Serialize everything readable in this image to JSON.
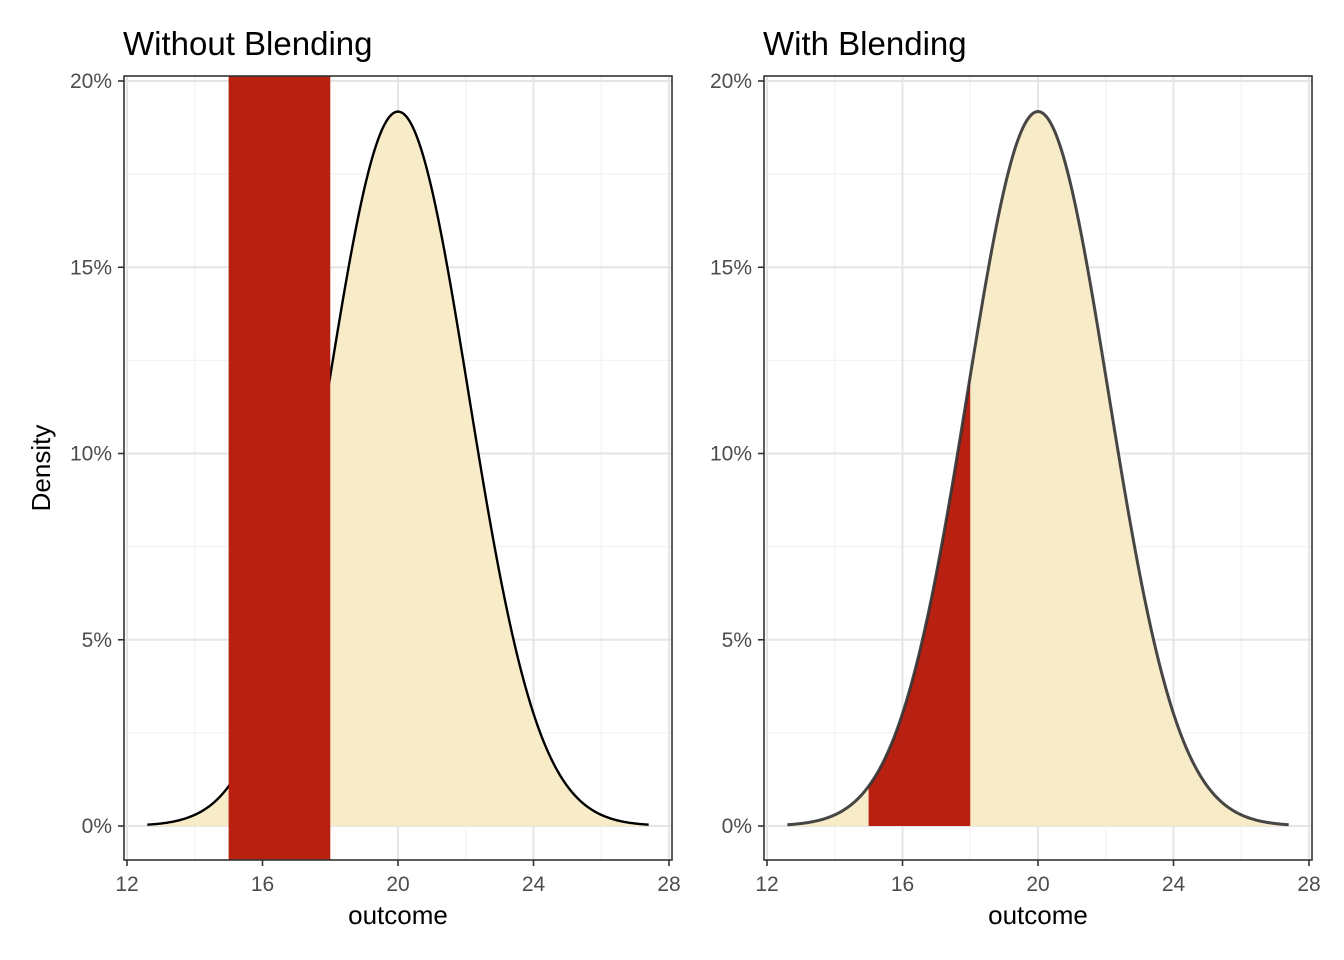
{
  "colors": {
    "fill": "#f7ebc8",
    "highlight": "#b82011",
    "curve": "#000000",
    "grid_major": "#e5e5e5",
    "grid_minor": "#f2f2f2",
    "panel_border": "#333333"
  },
  "chart_data": [
    {
      "type": "area",
      "title": "Without Blending",
      "xlabel": "outcome",
      "ylabel": "Density",
      "xlim": [
        12,
        28
      ],
      "ylim": [
        0,
        0.2
      ],
      "x_ticks": [
        12,
        16,
        20,
        24,
        28
      ],
      "x_tick_labels": [
        "12",
        "16",
        "20",
        "24",
        "28"
      ],
      "y_ticks": [
        0,
        0.05,
        0.1,
        0.15,
        0.2
      ],
      "y_tick_labels": [
        "0%",
        "5%",
        "10%",
        "15%",
        "20%"
      ],
      "grid": true,
      "blending": false,
      "distribution": {
        "kind": "normal",
        "mean": 20,
        "sd": 2.08,
        "x_range": [
          12.6,
          27.4
        ]
      },
      "highlight_region": [
        15,
        18
      ]
    },
    {
      "type": "area",
      "title": "With Blending",
      "xlabel": "outcome",
      "ylabel": "",
      "xlim": [
        12,
        28
      ],
      "ylim": [
        0,
        0.2
      ],
      "x_ticks": [
        12,
        16,
        20,
        24,
        28
      ],
      "x_tick_labels": [
        "12",
        "16",
        "20",
        "24",
        "28"
      ],
      "y_ticks": [
        0,
        0.05,
        0.1,
        0.15,
        0.2
      ],
      "y_tick_labels": [
        "0%",
        "5%",
        "10%",
        "15%",
        "20%"
      ],
      "grid": true,
      "blending": true,
      "distribution": {
        "kind": "normal",
        "mean": 20,
        "sd": 2.08,
        "x_range": [
          12.6,
          27.4
        ]
      },
      "highlight_region": [
        15,
        18
      ]
    }
  ]
}
